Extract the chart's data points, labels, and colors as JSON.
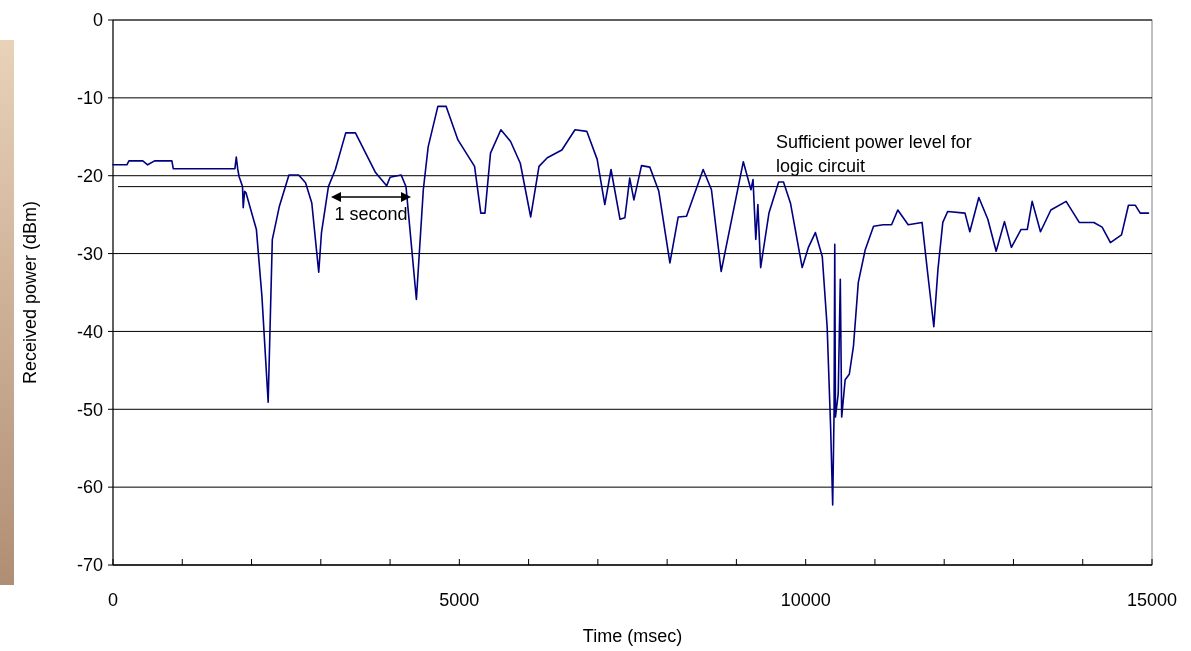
{
  "chart_data": {
    "type": "line",
    "xlabel": "Time (msec)",
    "ylabel": "Received power (dBm)",
    "xlim": [
      0,
      15000
    ],
    "ylim": [
      -70,
      0
    ],
    "xticks": [
      0,
      {
        "value": 1000,
        "label": null
      },
      {
        "value": 2000,
        "label": null
      },
      {
        "value": 3000,
        "label": null
      },
      {
        "value": 4000,
        "label": null
      },
      5000,
      {
        "value": 6000,
        "label": null
      },
      {
        "value": 7000,
        "label": null
      },
      {
        "value": 8000,
        "label": null
      },
      {
        "value": 9000,
        "label": null
      },
      10000,
      {
        "value": 11000,
        "label": null
      },
      {
        "value": 12000,
        "label": null
      },
      {
        "value": 13000,
        "label": null
      },
      {
        "value": 14000,
        "label": null
      },
      15000
    ],
    "yticks": [
      -70,
      -60,
      -50,
      -40,
      -30,
      -20,
      -10,
      0
    ],
    "grid": "y",
    "marker": "none",
    "line_style": "solid",
    "ref_lines": [
      {
        "axis": "y",
        "value": -21.4,
        "label": "Sufficient power level for logic circuit",
        "color": "#000000"
      }
    ],
    "annotations": [
      "1 second"
    ],
    "series": [
      {
        "color": "#000080",
        "x": [
          0,
          200,
          230,
          430,
          500,
          600,
          850,
          870,
          1580,
          1760,
          1780,
          1800,
          1820,
          1870,
          1880,
          1900,
          1920,
          2070,
          2150,
          2240,
          2300,
          2400,
          2540,
          2680,
          2780,
          2870,
          2970,
          3010,
          3110,
          3210,
          3360,
          3500,
          3790,
          3950,
          4000,
          4160,
          4230,
          4380,
          4480,
          4550,
          4690,
          4810,
          4980,
          5220,
          5310,
          5370,
          5450,
          5600,
          5740,
          5880,
          6030,
          6150,
          6270,
          6480,
          6670,
          6840,
          6990,
          7100,
          7190,
          7320,
          7390,
          7460,
          7520,
          7630,
          7750,
          7880,
          8040,
          8160,
          8280,
          8520,
          8640,
          8780,
          9100,
          9210,
          9240,
          9280,
          9310,
          9350,
          9470,
          9610,
          9680,
          9780,
          9950,
          10040,
          10140,
          10240,
          10310,
          10360,
          10390,
          10410,
          10420,
          10430,
          10470,
          10500,
          10520,
          10570,
          10630,
          10690,
          10760,
          10860,
          10980,
          11120,
          11240,
          11330,
          11480,
          11680,
          11760,
          11850,
          11910,
          11980,
          12050,
          12300,
          12370,
          12500,
          12630,
          12750,
          12870,
          12970,
          13110,
          13200,
          13270,
          13390,
          13540,
          13760,
          13950,
          14160,
          14280,
          14400,
          14560,
          14660,
          14760,
          14830,
          14950
        ],
        "values": [
          -18.6,
          -18.6,
          -18.1,
          -18.1,
          -18.6,
          -18.1,
          -18.1,
          -19.1,
          -19.1,
          -19.1,
          -17.6,
          -19.1,
          -20.1,
          -21.4,
          -24.1,
          -22.0,
          -22.2,
          -26.9,
          -35.5,
          -49.1,
          -28.2,
          -24.0,
          -19.9,
          -19.9,
          -20.9,
          -23.5,
          -32.4,
          -27.3,
          -21.4,
          -19.2,
          -14.5,
          -14.5,
          -19.6,
          -21.3,
          -20.2,
          -19.9,
          -21.4,
          -35.9,
          -21.8,
          -16.3,
          -11.1,
          -11.1,
          -15.4,
          -18.8,
          -24.8,
          -24.8,
          -17.1,
          -14.1,
          -15.6,
          -18.4,
          -25.3,
          -18.8,
          -17.7,
          -16.7,
          -14.1,
          -14.3,
          -17.9,
          -23.7,
          -19.2,
          -25.6,
          -25.4,
          -20.3,
          -23.1,
          -18.7,
          -18.9,
          -22.0,
          -31.2,
          -25.3,
          -25.2,
          -19.2,
          -21.8,
          -32.3,
          -18.2,
          -21.8,
          -20.5,
          -28.2,
          -23.7,
          -31.8,
          -24.8,
          -20.8,
          -20.8,
          -23.5,
          -31.8,
          -29.2,
          -27.3,
          -30.4,
          -39.4,
          -52.2,
          -62.3,
          -50.4,
          -28.8,
          -51.0,
          -48.0,
          -33.3,
          -51.0,
          -46.2,
          -45.5,
          -41.9,
          -33.7,
          -29.5,
          -26.5,
          -26.3,
          -26.3,
          -24.4,
          -26.3,
          -26.0,
          -32.4,
          -39.4,
          -32.0,
          -26.0,
          -24.6,
          -24.8,
          -27.2,
          -22.8,
          -25.6,
          -29.7,
          -25.9,
          -29.2,
          -26.9,
          -26.9,
          -23.3,
          -27.2,
          -24.4,
          -23.3,
          -26.0,
          -26.0,
          -26.6,
          -28.6,
          -27.6,
          -23.8,
          -23.8,
          -24.8,
          -24.8
        ]
      }
    ]
  }
}
